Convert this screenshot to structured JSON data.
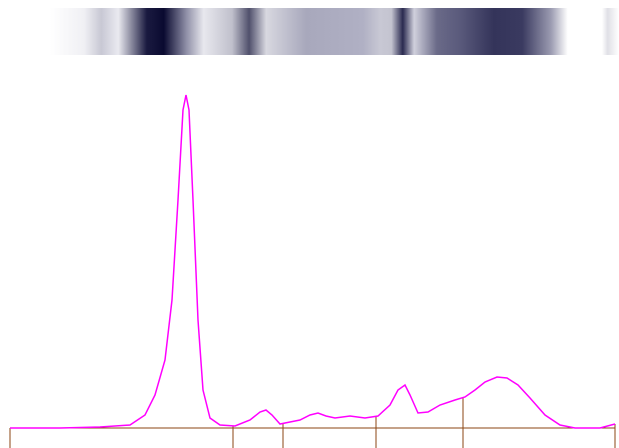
{
  "chart_data": {
    "type": "line",
    "x": [
      0,
      50,
      90,
      120,
      135,
      145,
      155,
      162,
      168,
      173,
      176,
      179,
      183,
      188,
      193,
      200,
      210,
      225,
      240,
      250,
      256,
      262,
      270,
      280,
      290,
      300,
      308,
      316,
      325,
      340,
      355,
      368,
      380,
      388,
      395,
      400,
      408,
      418,
      430,
      445,
      455,
      465,
      475,
      487,
      497,
      508,
      520,
      535,
      550,
      565,
      590,
      605
    ],
    "values": [
      0,
      0,
      1,
      3,
      13,
      33,
      68,
      128,
      228,
      318,
      333,
      318,
      228,
      108,
      38,
      10,
      3,
      2,
      8,
      16,
      18,
      13,
      4,
      6,
      8,
      13,
      15,
      12,
      10,
      12,
      10,
      12,
      23,
      38,
      43,
      33,
      15,
      16,
      23,
      28,
      31,
      38,
      46,
      51,
      50,
      43,
      30,
      13,
      3,
      0,
      0,
      4
    ],
    "color": "#ff00ff",
    "dividers": [
      0,
      223,
      273,
      366,
      453,
      605
    ],
    "divider_color": "#8b4513",
    "xlim": [
      0,
      605
    ],
    "ylim": [
      0,
      333
    ]
  }
}
